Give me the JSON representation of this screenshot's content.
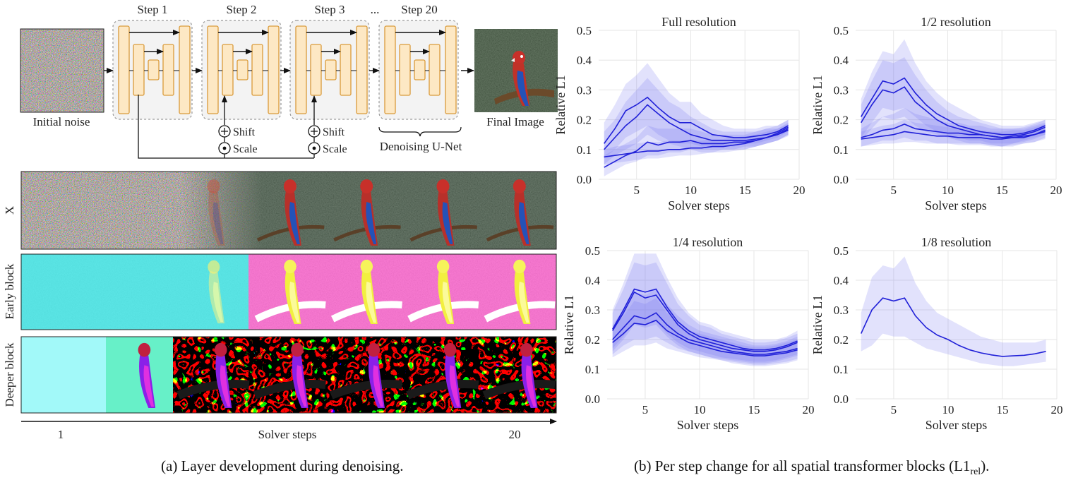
{
  "left_panel": {
    "step_labels": [
      "Step 1",
      "Step 2",
      "Step 3",
      "...",
      "Step 20"
    ],
    "initial_noise_label": "Initial noise",
    "final_image_label": "Final Image",
    "shift_label": "Shift",
    "scale_label": "Scale",
    "unet_label": "Denoising U-Net",
    "row_labels": [
      "X",
      "Early block",
      "Deeper block"
    ],
    "axis_title": "Solver steps",
    "axis_start": "1",
    "axis_end": "20",
    "caption": "(a) Layer development during denoising."
  },
  "right_panel": {
    "caption_main": "(b) Per step change for all spatial transformer blocks (L1",
    "caption_sub": "rel",
    "caption_end": ")."
  },
  "colors": {
    "unet_fill": "#fde8c4",
    "unet_stroke": "#d99a3a",
    "line": "#2020d8",
    "band": "#6e6ef0",
    "grid": "#e6e6e6"
  },
  "chart_data": [
    {
      "type": "line",
      "title": "Full resolution",
      "xlabel": "Solver steps",
      "ylabel": "Relative L1",
      "xlim": [
        1.5,
        20
      ],
      "ylim": [
        0,
        0.5
      ],
      "xticks": [
        5,
        10,
        15,
        20
      ],
      "yticks": [
        0.0,
        0.1,
        0.2,
        0.3,
        0.4,
        0.5
      ],
      "grid": true,
      "x": [
        2,
        3,
        4,
        5,
        6,
        7,
        8,
        9,
        10,
        11,
        12,
        13,
        14,
        15,
        16,
        17,
        18,
        19
      ],
      "series": [
        {
          "values": [
            0.12,
            0.17,
            0.23,
            0.25,
            0.275,
            0.24,
            0.21,
            0.19,
            0.19,
            0.17,
            0.15,
            0.145,
            0.14,
            0.14,
            0.145,
            0.15,
            0.16,
            0.18
          ],
          "lower": [
            0.07,
            0.1,
            0.14,
            0.16,
            0.18,
            0.15,
            0.13,
            0.12,
            0.12,
            0.11,
            0.11,
            0.11,
            0.11,
            0.12,
            0.12,
            0.13,
            0.14,
            0.16
          ],
          "upper": [
            0.19,
            0.25,
            0.32,
            0.35,
            0.39,
            0.34,
            0.29,
            0.26,
            0.26,
            0.22,
            0.2,
            0.18,
            0.17,
            0.17,
            0.17,
            0.18,
            0.18,
            0.2
          ]
        },
        {
          "values": [
            0.1,
            0.14,
            0.18,
            0.21,
            0.25,
            0.22,
            0.19,
            0.17,
            0.15,
            0.14,
            0.13,
            0.13,
            0.13,
            0.13,
            0.135,
            0.14,
            0.155,
            0.175
          ],
          "lower": [
            0.05,
            0.08,
            0.1,
            0.12,
            0.15,
            0.13,
            0.12,
            0.11,
            0.1,
            0.1,
            0.1,
            0.1,
            0.1,
            0.11,
            0.11,
            0.12,
            0.13,
            0.15
          ],
          "upper": [
            0.16,
            0.2,
            0.26,
            0.3,
            0.34,
            0.3,
            0.26,
            0.24,
            0.21,
            0.19,
            0.17,
            0.16,
            0.16,
            0.16,
            0.16,
            0.17,
            0.18,
            0.2
          ]
        },
        {
          "values": [
            0.04,
            0.06,
            0.08,
            0.095,
            0.125,
            0.115,
            0.125,
            0.125,
            0.13,
            0.12,
            0.12,
            0.12,
            0.125,
            0.125,
            0.13,
            0.14,
            0.15,
            0.17
          ],
          "lower": [
            0.01,
            0.03,
            0.05,
            0.06,
            0.08,
            0.08,
            0.09,
            0.09,
            0.1,
            0.09,
            0.09,
            0.1,
            0.1,
            0.1,
            0.11,
            0.12,
            0.13,
            0.15
          ],
          "upper": [
            0.08,
            0.1,
            0.12,
            0.14,
            0.18,
            0.17,
            0.17,
            0.17,
            0.17,
            0.16,
            0.15,
            0.15,
            0.15,
            0.15,
            0.16,
            0.17,
            0.17,
            0.19
          ]
        },
        {
          "values": [
            0.075,
            0.08,
            0.085,
            0.09,
            0.095,
            0.095,
            0.1,
            0.1,
            0.105,
            0.105,
            0.11,
            0.11,
            0.115,
            0.12,
            0.13,
            0.14,
            0.15,
            0.165
          ],
          "lower": [
            0.05,
            0.055,
            0.06,
            0.065,
            0.07,
            0.07,
            0.075,
            0.08,
            0.08,
            0.085,
            0.09,
            0.09,
            0.095,
            0.1,
            0.11,
            0.12,
            0.13,
            0.145
          ],
          "upper": [
            0.1,
            0.11,
            0.115,
            0.12,
            0.125,
            0.125,
            0.13,
            0.13,
            0.13,
            0.13,
            0.135,
            0.135,
            0.14,
            0.145,
            0.15,
            0.16,
            0.17,
            0.185
          ]
        }
      ]
    },
    {
      "type": "line",
      "title": "1/2 resolution",
      "xlabel": "Solver steps",
      "ylabel": "Relative L1",
      "xlim": [
        1.5,
        20
      ],
      "ylim": [
        0,
        0.5
      ],
      "xticks": [
        5,
        10,
        15,
        20
      ],
      "yticks": [
        0.0,
        0.1,
        0.2,
        0.3,
        0.4,
        0.5
      ],
      "grid": true,
      "x": [
        2,
        3,
        4,
        5,
        6,
        7,
        8,
        9,
        10,
        11,
        12,
        13,
        14,
        15,
        16,
        17,
        18,
        19
      ],
      "series": [
        {
          "values": [
            0.21,
            0.27,
            0.33,
            0.32,
            0.34,
            0.29,
            0.25,
            0.22,
            0.2,
            0.18,
            0.17,
            0.16,
            0.155,
            0.15,
            0.15,
            0.155,
            0.165,
            0.18
          ],
          "lower": [
            0.14,
            0.19,
            0.24,
            0.23,
            0.24,
            0.21,
            0.18,
            0.16,
            0.15,
            0.14,
            0.13,
            0.13,
            0.12,
            0.12,
            0.12,
            0.13,
            0.14,
            0.15
          ],
          "upper": [
            0.27,
            0.36,
            0.43,
            0.42,
            0.47,
            0.39,
            0.33,
            0.29,
            0.26,
            0.24,
            0.22,
            0.2,
            0.19,
            0.18,
            0.18,
            0.18,
            0.19,
            0.2
          ]
        },
        {
          "values": [
            0.19,
            0.25,
            0.3,
            0.29,
            0.31,
            0.26,
            0.23,
            0.2,
            0.18,
            0.17,
            0.16,
            0.15,
            0.145,
            0.14,
            0.145,
            0.15,
            0.16,
            0.175
          ],
          "lower": [
            0.13,
            0.17,
            0.21,
            0.2,
            0.21,
            0.18,
            0.16,
            0.15,
            0.14,
            0.13,
            0.12,
            0.12,
            0.115,
            0.11,
            0.12,
            0.125,
            0.135,
            0.15
          ],
          "upper": [
            0.25,
            0.33,
            0.4,
            0.39,
            0.41,
            0.35,
            0.3,
            0.26,
            0.23,
            0.21,
            0.2,
            0.19,
            0.18,
            0.17,
            0.17,
            0.175,
            0.185,
            0.2
          ]
        },
        {
          "values": [
            0.14,
            0.15,
            0.165,
            0.17,
            0.185,
            0.17,
            0.165,
            0.16,
            0.155,
            0.155,
            0.15,
            0.15,
            0.145,
            0.14,
            0.14,
            0.145,
            0.15,
            0.165
          ],
          "lower": [
            0.11,
            0.12,
            0.13,
            0.13,
            0.14,
            0.13,
            0.13,
            0.12,
            0.12,
            0.12,
            0.12,
            0.12,
            0.115,
            0.11,
            0.11,
            0.12,
            0.125,
            0.14
          ],
          "upper": [
            0.17,
            0.19,
            0.21,
            0.22,
            0.24,
            0.22,
            0.21,
            0.2,
            0.19,
            0.19,
            0.18,
            0.18,
            0.17,
            0.17,
            0.17,
            0.17,
            0.18,
            0.19
          ]
        },
        {
          "values": [
            0.135,
            0.14,
            0.145,
            0.15,
            0.16,
            0.155,
            0.15,
            0.145,
            0.145,
            0.14,
            0.14,
            0.14,
            0.135,
            0.135,
            0.14,
            0.14,
            0.15,
            0.16
          ],
          "lower": [
            0.11,
            0.115,
            0.12,
            0.12,
            0.125,
            0.125,
            0.12,
            0.12,
            0.12,
            0.115,
            0.115,
            0.115,
            0.11,
            0.11,
            0.115,
            0.12,
            0.125,
            0.135
          ],
          "upper": [
            0.16,
            0.17,
            0.18,
            0.185,
            0.2,
            0.19,
            0.185,
            0.18,
            0.175,
            0.17,
            0.17,
            0.165,
            0.16,
            0.16,
            0.165,
            0.165,
            0.175,
            0.185
          ]
        }
      ]
    },
    {
      "type": "line",
      "title": "1/4 resolution",
      "xlabel": "Solver steps",
      "ylabel": "Relative L1",
      "xlim": [
        1.5,
        20
      ],
      "ylim": [
        0,
        0.5
      ],
      "xticks": [
        5,
        10,
        15,
        20
      ],
      "yticks": [
        0.0,
        0.1,
        0.2,
        0.3,
        0.4,
        0.5
      ],
      "grid": true,
      "x": [
        2,
        3,
        4,
        5,
        6,
        7,
        8,
        9,
        10,
        11,
        12,
        13,
        14,
        15,
        16,
        17,
        18,
        19
      ],
      "series": [
        {
          "values": [
            0.235,
            0.3,
            0.37,
            0.36,
            0.37,
            0.31,
            0.26,
            0.23,
            0.21,
            0.2,
            0.19,
            0.18,
            0.17,
            0.165,
            0.165,
            0.17,
            0.18,
            0.195
          ],
          "lower": [
            0.17,
            0.21,
            0.26,
            0.25,
            0.26,
            0.22,
            0.19,
            0.17,
            0.16,
            0.15,
            0.14,
            0.135,
            0.13,
            0.125,
            0.125,
            0.13,
            0.14,
            0.15
          ],
          "upper": [
            0.3,
            0.39,
            0.49,
            0.49,
            0.49,
            0.41,
            0.34,
            0.29,
            0.26,
            0.25,
            0.23,
            0.22,
            0.21,
            0.2,
            0.2,
            0.2,
            0.21,
            0.23
          ]
        },
        {
          "values": [
            0.23,
            0.29,
            0.36,
            0.34,
            0.35,
            0.3,
            0.25,
            0.22,
            0.2,
            0.19,
            0.18,
            0.17,
            0.165,
            0.16,
            0.16,
            0.165,
            0.175,
            0.19
          ],
          "lower": [
            0.16,
            0.2,
            0.25,
            0.24,
            0.25,
            0.21,
            0.18,
            0.16,
            0.15,
            0.14,
            0.135,
            0.13,
            0.125,
            0.12,
            0.12,
            0.125,
            0.135,
            0.145
          ],
          "upper": [
            0.29,
            0.37,
            0.46,
            0.45,
            0.46,
            0.39,
            0.32,
            0.28,
            0.25,
            0.24,
            0.22,
            0.21,
            0.2,
            0.19,
            0.19,
            0.195,
            0.205,
            0.22
          ]
        },
        {
          "values": [
            0.2,
            0.24,
            0.28,
            0.27,
            0.29,
            0.25,
            0.22,
            0.2,
            0.19,
            0.18,
            0.17,
            0.16,
            0.155,
            0.15,
            0.15,
            0.155,
            0.16,
            0.17
          ],
          "lower": [
            0.15,
            0.18,
            0.2,
            0.2,
            0.21,
            0.19,
            0.17,
            0.16,
            0.15,
            0.14,
            0.13,
            0.125,
            0.12,
            0.115,
            0.115,
            0.12,
            0.125,
            0.135
          ],
          "upper": [
            0.25,
            0.3,
            0.36,
            0.35,
            0.37,
            0.32,
            0.28,
            0.25,
            0.23,
            0.22,
            0.21,
            0.2,
            0.19,
            0.18,
            0.18,
            0.185,
            0.195,
            0.21
          ]
        },
        {
          "values": [
            0.19,
            0.22,
            0.255,
            0.25,
            0.265,
            0.23,
            0.21,
            0.19,
            0.18,
            0.17,
            0.16,
            0.155,
            0.15,
            0.145,
            0.145,
            0.15,
            0.155,
            0.165
          ],
          "lower": [
            0.14,
            0.16,
            0.18,
            0.18,
            0.19,
            0.17,
            0.16,
            0.15,
            0.14,
            0.135,
            0.13,
            0.12,
            0.115,
            0.11,
            0.11,
            0.115,
            0.12,
            0.13
          ],
          "upper": [
            0.24,
            0.28,
            0.33,
            0.32,
            0.34,
            0.29,
            0.26,
            0.23,
            0.22,
            0.21,
            0.2,
            0.19,
            0.18,
            0.175,
            0.175,
            0.18,
            0.19,
            0.2
          ]
        }
      ]
    },
    {
      "type": "line",
      "title": "1/8 resolution",
      "xlabel": "Solver steps",
      "ylabel": "Relative L1",
      "xlim": [
        1.5,
        20
      ],
      "ylim": [
        0,
        0.5
      ],
      "xticks": [
        5,
        10,
        15,
        20
      ],
      "yticks": [
        0.0,
        0.1,
        0.2,
        0.3,
        0.4,
        0.5
      ],
      "grid": true,
      "x": [
        2,
        3,
        4,
        5,
        6,
        7,
        8,
        9,
        10,
        11,
        12,
        13,
        14,
        15,
        16,
        17,
        18,
        19
      ],
      "series": [
        {
          "values": [
            0.22,
            0.3,
            0.34,
            0.33,
            0.34,
            0.28,
            0.24,
            0.215,
            0.2,
            0.18,
            0.165,
            0.155,
            0.148,
            0.143,
            0.145,
            0.147,
            0.152,
            0.16
          ],
          "lower": [
            0.16,
            0.18,
            0.22,
            0.21,
            0.21,
            0.19,
            0.17,
            0.16,
            0.15,
            0.14,
            0.13,
            0.12,
            0.115,
            0.11,
            0.11,
            0.115,
            0.12,
            0.125
          ],
          "upper": [
            0.29,
            0.41,
            0.45,
            0.44,
            0.48,
            0.39,
            0.33,
            0.29,
            0.27,
            0.25,
            0.23,
            0.21,
            0.2,
            0.19,
            0.19,
            0.19,
            0.19,
            0.2
          ]
        }
      ]
    }
  ]
}
